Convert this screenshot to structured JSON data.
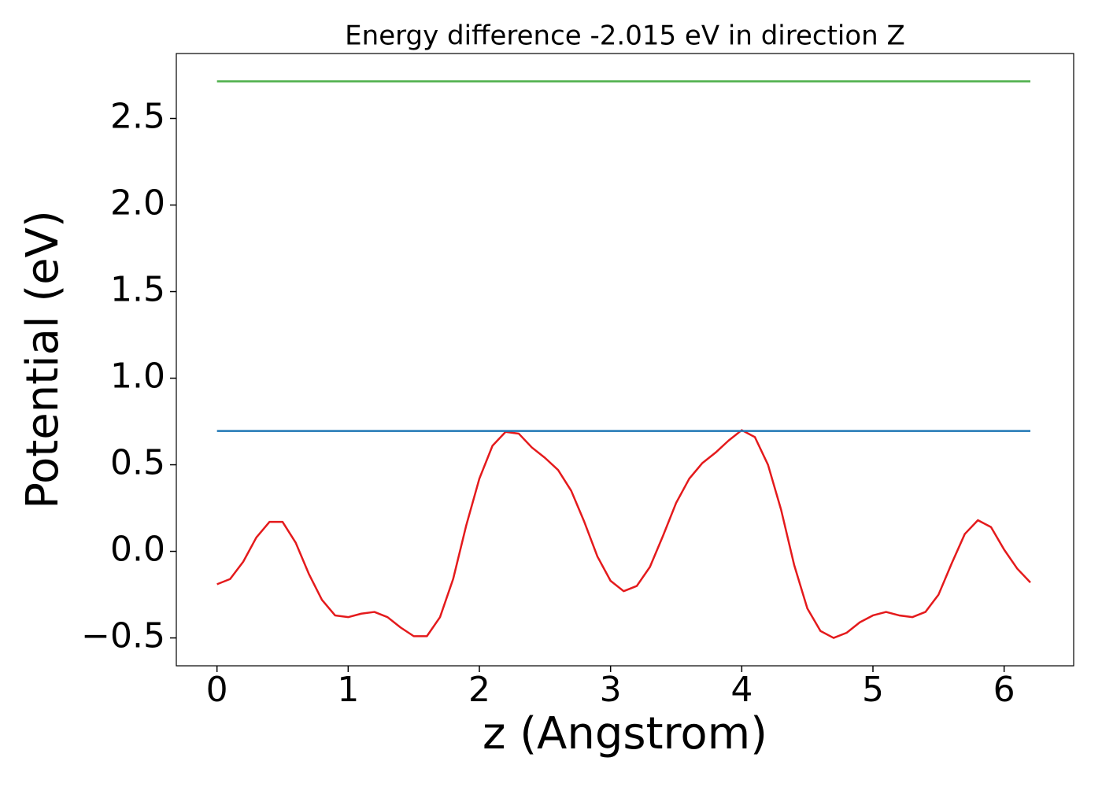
{
  "chart_data": {
    "type": "line",
    "title": "Energy difference -2.015 eV in direction Z",
    "x_label": "z (Angstrom)",
    "y_label": "Potential (eV)",
    "xlim": [
      -0.31,
      6.53
    ],
    "ylim": [
      -0.661,
      2.875
    ],
    "xticks": [
      0,
      1,
      2,
      3,
      4,
      5,
      6
    ],
    "yticks": [
      {
        "value": -0.5,
        "label": "−0.5"
      },
      {
        "value": 0,
        "label": "0.0"
      },
      0.5,
      {
        "value": 1,
        "label": "1.0"
      },
      1.5,
      {
        "value": 2,
        "label": "2.0"
      },
      2.5
    ],
    "grid": false,
    "series": [
      {
        "color": "#e41a1c",
        "x": [
          0,
          0.1,
          0.2,
          0.3,
          0.4,
          0.5,
          0.6,
          0.7,
          0.8,
          0.9,
          1.0,
          1.1,
          1.2,
          1.3,
          1.4,
          1.5,
          1.6,
          1.7,
          1.8,
          1.9,
          2.0,
          2.1,
          2.2,
          2.3,
          2.4,
          2.5,
          2.6,
          2.7,
          2.8,
          2.9,
          3.0,
          3.1,
          3.2,
          3.3,
          3.4,
          3.5,
          3.6,
          3.7,
          3.8,
          3.9,
          4.0,
          4.1,
          4.2,
          4.3,
          4.4,
          4.5,
          4.6,
          4.7,
          4.8,
          4.9,
          5.0,
          5.1,
          5.2,
          5.3,
          5.4,
          5.5,
          5.6,
          5.7,
          5.8,
          5.9,
          6.0,
          6.1,
          6.2
        ],
        "values": [
          -0.19,
          -0.16,
          -0.06,
          0.08,
          0.17,
          0.17,
          0.05,
          -0.13,
          -0.28,
          -0.37,
          -0.38,
          -0.36,
          -0.35,
          -0.38,
          -0.44,
          -0.49,
          -0.49,
          -0.38,
          -0.16,
          0.15,
          0.42,
          0.61,
          0.69,
          0.68,
          0.6,
          0.54,
          0.47,
          0.35,
          0.17,
          -0.03,
          -0.17,
          -0.23,
          -0.2,
          -0.09,
          0.09,
          0.28,
          0.42,
          0.51,
          0.57,
          0.64,
          0.7,
          0.66,
          0.5,
          0.24,
          -0.08,
          -0.33,
          -0.46,
          -0.5,
          -0.47,
          -0.41,
          -0.37,
          -0.35,
          -0.37,
          -0.38,
          -0.35,
          -0.25,
          -0.07,
          0.1,
          0.18,
          0.14,
          0.01,
          -0.1,
          -0.18
        ]
      },
      {
        "color": "#1f77b4",
        "x": [
          0,
          6.2
        ],
        "values": [
          0.695,
          0.695
        ]
      },
      {
        "color": "#4daf4a",
        "x": [
          0,
          6.2
        ],
        "values": [
          2.714,
          2.714
        ]
      }
    ]
  }
}
